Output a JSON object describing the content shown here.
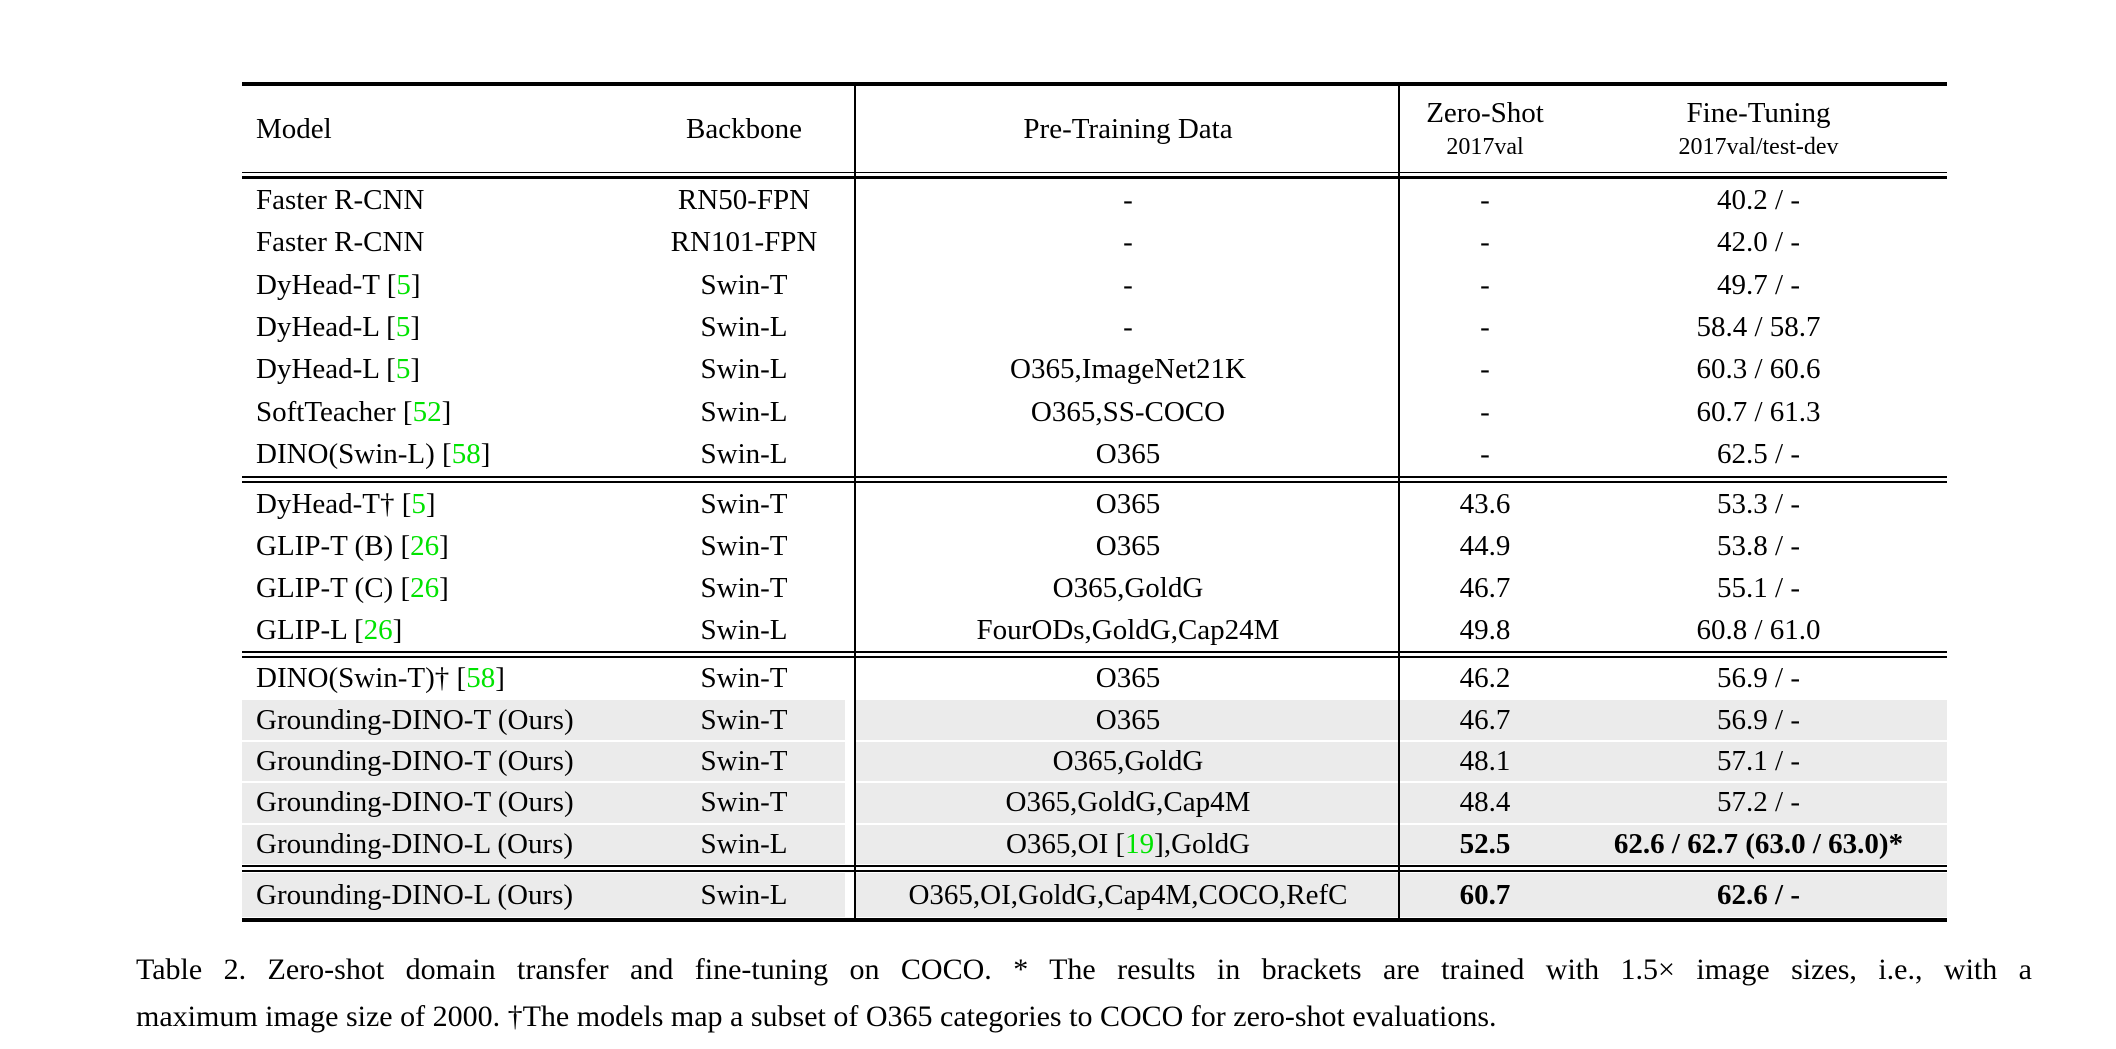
{
  "caption": {
    "line1": "Table 2.  Zero-shot domain transfer and fine-tuning on COCO. * The results in brackets are trained with 1.5× image sizes, i.e., with a",
    "line2": "maximum image size of 2000. †The models map a subset of O365 categories to COCO for zero-shot evaluations."
  },
  "table": {
    "colors": {
      "highlight": "#ebebeb",
      "cite_green": "#00e300",
      "rule": "#000000"
    },
    "headers": {
      "model": "Model",
      "backbone": "Backbone",
      "pretrain": "Pre-Training Data",
      "zero_shot": "Zero-Shot",
      "zero_shot_sub": "2017val",
      "fine_tune": "Fine-Tuning",
      "fine_tune_sub": "2017val/test-dev"
    },
    "blocks": [
      {
        "rows": [
          {
            "model": "Faster R-CNN",
            "backbone": "RN50-FPN",
            "pretrain": "-",
            "zero_shot": "-",
            "fine_tune": "40.2 / -",
            "highlight": false,
            "bold_zs": false,
            "bold_ft": false
          },
          {
            "model": "Faster R-CNN",
            "backbone": "RN101-FPN",
            "pretrain": "-",
            "zero_shot": "-",
            "fine_tune": "42.0 / -",
            "highlight": false,
            "bold_zs": false,
            "bold_ft": false
          },
          {
            "model": "DyHead-T [5]",
            "backbone": "Swin-T",
            "pretrain": "-",
            "zero_shot": "-",
            "fine_tune": "49.7 / -",
            "highlight": false,
            "bold_zs": false,
            "bold_ft": false
          },
          {
            "model": "DyHead-L [5]",
            "backbone": "Swin-L",
            "pretrain": "-",
            "zero_shot": "-",
            "fine_tune": "58.4 / 58.7",
            "highlight": false,
            "bold_zs": false,
            "bold_ft": false
          },
          {
            "model": "DyHead-L [5]",
            "backbone": "Swin-L",
            "pretrain": "O365,ImageNet21K",
            "zero_shot": "-",
            "fine_tune": "60.3 / 60.6",
            "highlight": false,
            "bold_zs": false,
            "bold_ft": false
          },
          {
            "model": "SoftTeacher [52]",
            "backbone": "Swin-L",
            "pretrain": "O365,SS-COCO",
            "zero_shot": "-",
            "fine_tune": "60.7 / 61.3",
            "highlight": false,
            "bold_zs": false,
            "bold_ft": false
          },
          {
            "model": "DINO(Swin-L) [58]",
            "backbone": "Swin-L",
            "pretrain": "O365",
            "zero_shot": "-",
            "fine_tune": "62.5 / -",
            "highlight": false,
            "bold_zs": false,
            "bold_ft": false
          }
        ]
      },
      {
        "rows": [
          {
            "model": "DyHead-T† [5]",
            "backbone": "Swin-T",
            "pretrain": "O365",
            "zero_shot": "43.6",
            "fine_tune": "53.3 / -",
            "highlight": false,
            "bold_zs": false,
            "bold_ft": false
          },
          {
            "model": "GLIP-T (B) [26]",
            "backbone": "Swin-T",
            "pretrain": "O365",
            "zero_shot": "44.9",
            "fine_tune": "53.8 / -",
            "highlight": false,
            "bold_zs": false,
            "bold_ft": false
          },
          {
            "model": "GLIP-T (C) [26]",
            "backbone": "Swin-T",
            "pretrain": "O365,GoldG",
            "zero_shot": "46.7",
            "fine_tune": "55.1 / -",
            "highlight": false,
            "bold_zs": false,
            "bold_ft": false
          },
          {
            "model": "GLIP-L [26]",
            "backbone": "Swin-L",
            "pretrain": "FourODs,GoldG,Cap24M",
            "zero_shot": "49.8",
            "fine_tune": "60.8 / 61.0",
            "highlight": false,
            "bold_zs": false,
            "bold_ft": false
          }
        ]
      },
      {
        "rows": [
          {
            "model": "DINO(Swin-T)† [58]",
            "backbone": "Swin-T",
            "pretrain": "O365",
            "zero_shot": "46.2",
            "fine_tune": "56.9 / -",
            "highlight": false,
            "bold_zs": false,
            "bold_ft": false
          },
          {
            "model": "Grounding-DINO-T (Ours)",
            "backbone": "Swin-T",
            "pretrain": "O365",
            "zero_shot": "46.7",
            "fine_tune": "56.9 / -",
            "highlight": true,
            "bold_zs": false,
            "bold_ft": false
          },
          {
            "model": "Grounding-DINO-T (Ours)",
            "backbone": "Swin-T",
            "pretrain": "O365,GoldG",
            "zero_shot": "48.1",
            "fine_tune": "57.1 / -",
            "highlight": true,
            "bold_zs": false,
            "bold_ft": false
          },
          {
            "model": "Grounding-DINO-T (Ours)",
            "backbone": "Swin-T",
            "pretrain": "O365,GoldG,Cap4M",
            "zero_shot": "48.4",
            "fine_tune": "57.2 / -",
            "highlight": true,
            "bold_zs": false,
            "bold_ft": false
          },
          {
            "model": "Grounding-DINO-L (Ours)",
            "backbone": "Swin-L",
            "pretrain": "O365,OI [19],GoldG",
            "zero_shot": "52.5",
            "fine_tune": "62.6 / 62.7 (63.0 / 63.0)*",
            "highlight": true,
            "bold_zs": true,
            "bold_ft": true
          }
        ]
      },
      {
        "rows": [
          {
            "model": "Grounding-DINO-L (Ours)",
            "backbone": "Swin-L",
            "pretrain": "O365,OI,GoldG,Cap4M,COCO,RefC",
            "zero_shot": "60.7",
            "fine_tune": "62.6 / -",
            "highlight": true,
            "bold_zs": true,
            "bold_ft": true
          }
        ]
      }
    ]
  }
}
